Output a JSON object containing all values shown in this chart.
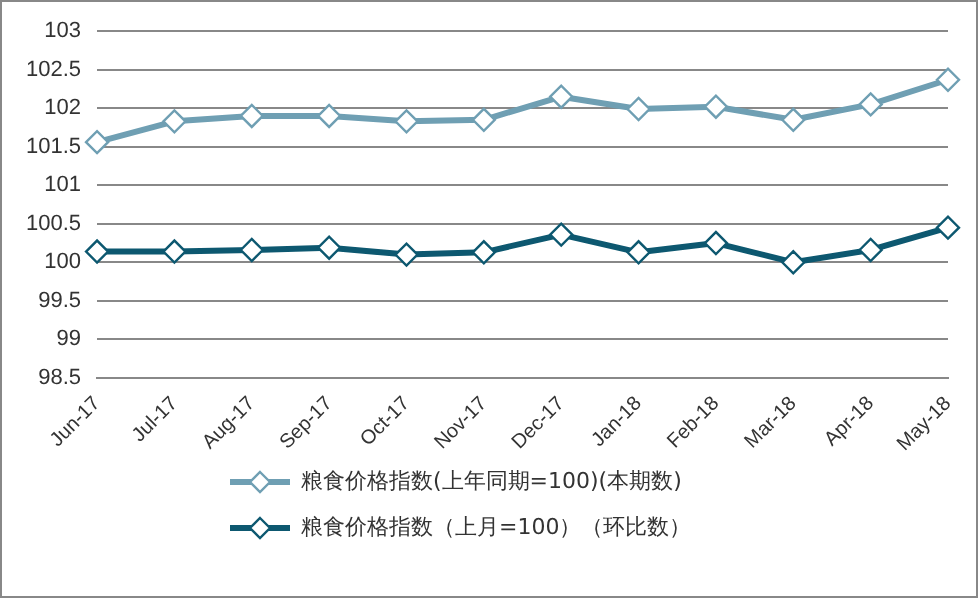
{
  "chart_data": {
    "type": "line",
    "categories": [
      "Jun-17",
      "Jul-17",
      "Aug-17",
      "Sep-17",
      "Oct-17",
      "Nov-17",
      "Dec-17",
      "Jan-18",
      "Feb-18",
      "Mar-18",
      "Apr-18",
      "May-18"
    ],
    "series": [
      {
        "name": "粮食价格指数(上年同期=100)(本期数)",
        "color": "#6f9fb3",
        "values": [
          101.56,
          101.83,
          101.9,
          101.9,
          101.83,
          101.85,
          102.15,
          101.99,
          102.02,
          101.85,
          102.05,
          102.37
        ]
      },
      {
        "name": "粮食价格指数（上月=100）（环比数）",
        "color": "#0d5870",
        "values": [
          100.14,
          100.14,
          100.16,
          100.19,
          100.1,
          100.13,
          100.36,
          100.13,
          100.25,
          100.0,
          100.16,
          100.45
        ]
      }
    ],
    "ylim": [
      98.5,
      103
    ],
    "yticks": [
      98.5,
      99,
      99.5,
      100,
      100.5,
      101,
      101.5,
      102,
      102.5,
      103
    ],
    "grid": "y",
    "legend": "bottom",
    "marker": "diamond",
    "line_style": "solid"
  }
}
